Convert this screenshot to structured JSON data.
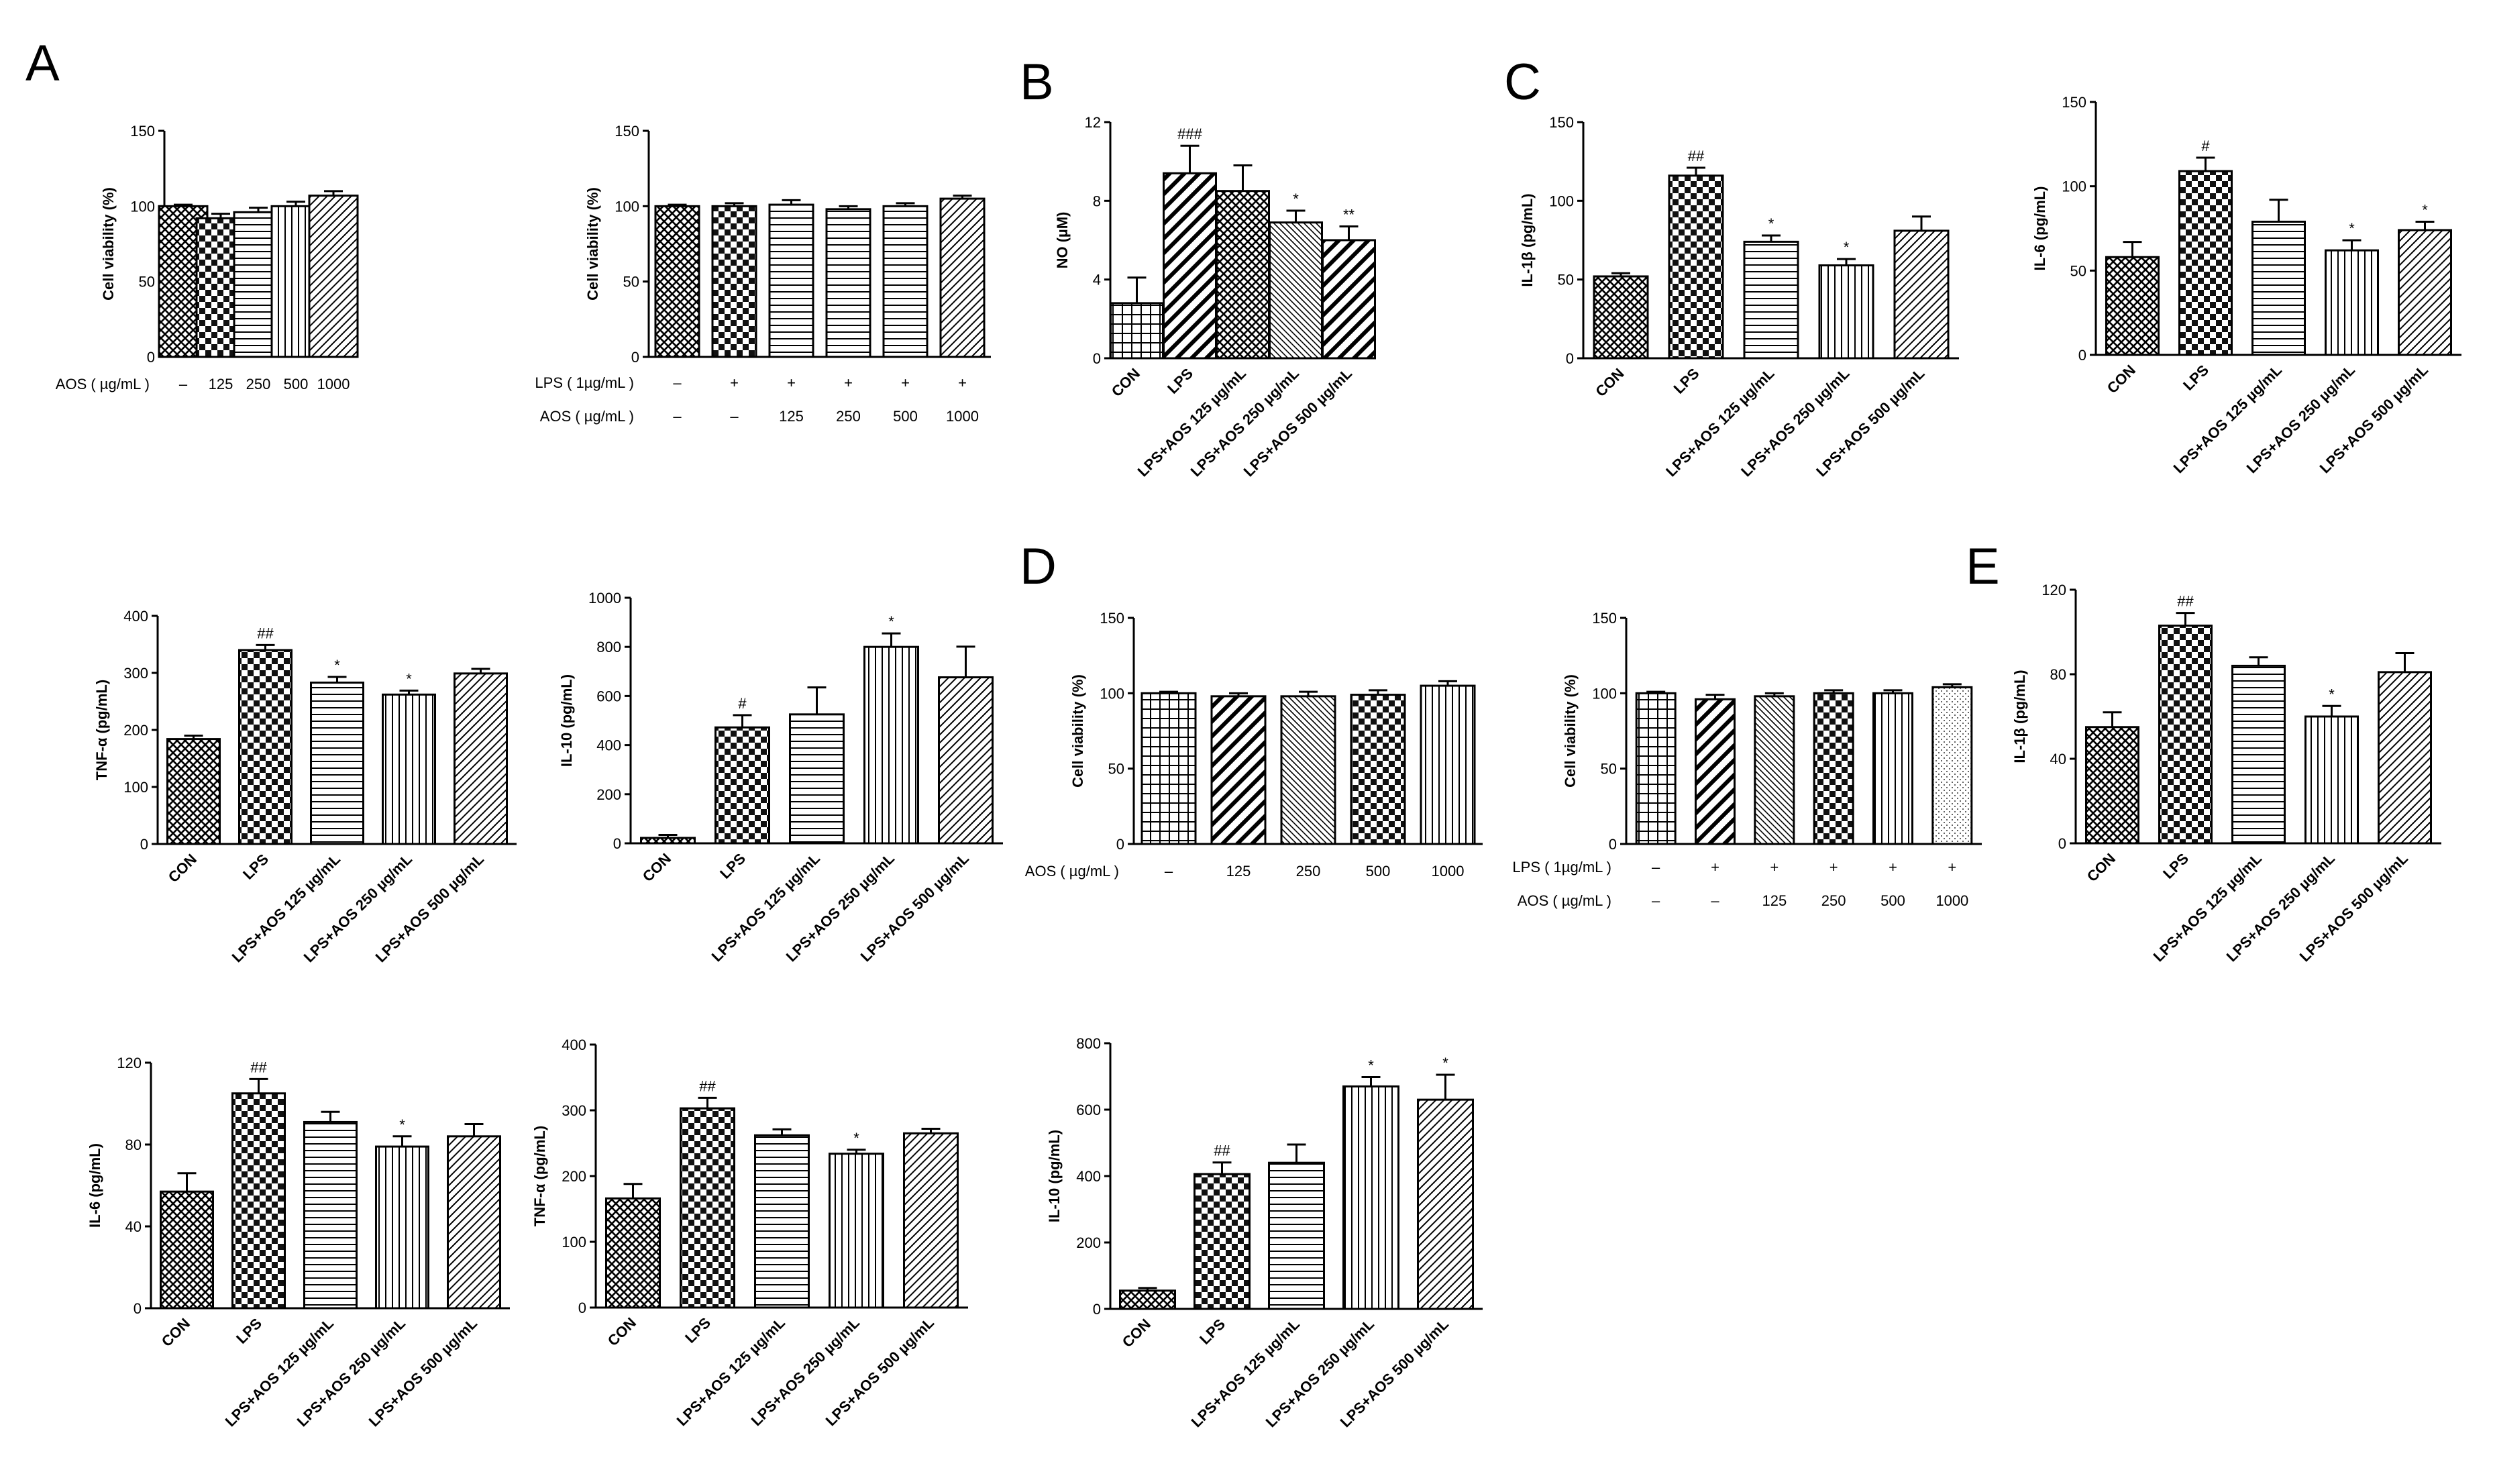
{
  "panel_labels": [
    "A",
    "B",
    "C",
    "D",
    "E"
  ],
  "chart_data": [
    {
      "id": "A1",
      "panel": "A",
      "type": "bar",
      "title": "",
      "ylabel": "Cell viability (%)",
      "ylim": [
        0,
        150
      ],
      "yticks": [
        0,
        50,
        100,
        150
      ],
      "categories": [
        "–",
        "125",
        "250",
        "500",
        "1000"
      ],
      "values": [
        100,
        92,
        96,
        100,
        107
      ],
      "errors": [
        1,
        3,
        3,
        3,
        3
      ],
      "sig": [
        "",
        "",
        "",
        "",
        ""
      ],
      "patterns": [
        "cross",
        "check",
        "hline",
        "vline",
        "diag"
      ],
      "rows": [
        {
          "label": "AOS ( µg/mL )",
          "values": [
            "–",
            "125",
            "250",
            "500",
            "1000"
          ]
        }
      ]
    },
    {
      "id": "A2",
      "panel": "A",
      "type": "bar",
      "title": "",
      "ylabel": "Cell viability (%)",
      "ylim": [
        0,
        150
      ],
      "yticks": [
        0,
        50,
        100,
        150
      ],
      "categories": [
        "–",
        "+",
        "+",
        "+",
        "+",
        "+"
      ],
      "values": [
        100,
        100,
        101,
        98,
        100,
        105
      ],
      "errors": [
        1,
        2,
        3,
        2,
        2,
        2
      ],
      "sig": [
        "",
        "",
        "",
        "",
        "",
        ""
      ],
      "patterns": [
        "cross",
        "check",
        "hline",
        "hline",
        "hline",
        "diag"
      ],
      "rows": [
        {
          "label": "LPS ( 1µg/mL )",
          "values": [
            "–",
            "+",
            "+",
            "+",
            "+",
            "+"
          ]
        },
        {
          "label": "AOS ( µg/mL )",
          "values": [
            "–",
            "–",
            "125",
            "250",
            "500",
            "1000"
          ]
        }
      ]
    },
    {
      "id": "B",
      "panel": "B",
      "type": "bar",
      "title": "",
      "ylabel": "NO (µM)",
      "ylim": [
        0,
        12
      ],
      "yticks": [
        0,
        4,
        8,
        12
      ],
      "categories": [
        "CON",
        "LPS",
        "LPS+AOS 125 µg/mL",
        "LPS+AOS 250 µg/mL",
        "LPS+AOS 500 µg/mL"
      ],
      "values": [
        2.8,
        9.4,
        8.5,
        6.9,
        6.0
      ],
      "errors": [
        1.3,
        1.4,
        1.3,
        0.6,
        0.7
      ],
      "sig": [
        "",
        "###",
        "",
        "*",
        "**"
      ],
      "patterns": [
        "grid",
        "bdiag",
        "cross",
        "fdiag",
        "bdiag"
      ],
      "rows": []
    },
    {
      "id": "C1",
      "panel": "C",
      "type": "bar",
      "title": "",
      "ylabel": "IL-1β (pg/mL)",
      "ylim": [
        0,
        150
      ],
      "yticks": [
        0,
        50,
        100,
        150
      ],
      "categories": [
        "CON",
        "LPS",
        "LPS+AOS 125 µg/mL",
        "LPS+AOS 250 µg/mL",
        "LPS+AOS 500 µg/mL"
      ],
      "values": [
        52,
        116,
        74,
        59,
        81
      ],
      "errors": [
        2,
        5,
        4,
        4,
        9
      ],
      "sig": [
        "",
        "##",
        "*",
        "*",
        ""
      ],
      "patterns": [
        "cross",
        "check",
        "hline",
        "vline",
        "diag"
      ],
      "rows": []
    },
    {
      "id": "C2",
      "panel": "C",
      "type": "bar",
      "title": "",
      "ylabel": "IL-6 (pg/mL)",
      "ylim": [
        0,
        150
      ],
      "yticks": [
        0,
        50,
        100,
        150
      ],
      "categories": [
        "CON",
        "LPS",
        "LPS+AOS 125 µg/mL",
        "LPS+AOS 250 µg/mL",
        "LPS+AOS 500 µg/mL"
      ],
      "values": [
        58,
        109,
        79,
        62,
        74
      ],
      "errors": [
        9,
        8,
        13,
        6,
        5
      ],
      "sig": [
        "",
        "#",
        "",
        "*",
        "*"
      ],
      "patterns": [
        "cross",
        "check",
        "hline",
        "vline",
        "diag"
      ],
      "rows": []
    },
    {
      "id": "C3",
      "panel": "C",
      "type": "bar",
      "title": "",
      "ylabel": "TNF-α (pg/mL)",
      "ylim": [
        0,
        400
      ],
      "yticks": [
        0,
        100,
        200,
        300,
        400
      ],
      "categories": [
        "CON",
        "LPS",
        "LPS+AOS 125 µg/mL",
        "LPS+AOS 250 µg/mL",
        "LPS+AOS 500 µg/mL"
      ],
      "values": [
        184,
        340,
        283,
        262,
        299
      ],
      "errors": [
        6,
        9,
        10,
        7,
        8
      ],
      "sig": [
        "",
        "##",
        "*",
        "*",
        ""
      ],
      "patterns": [
        "cross",
        "check",
        "hline",
        "vline",
        "diag"
      ],
      "rows": []
    },
    {
      "id": "C4",
      "panel": "C",
      "type": "bar",
      "title": "",
      "ylabel": "IL-10 (pg/mL)",
      "ylim": [
        0,
        1000
      ],
      "yticks": [
        0,
        200,
        400,
        600,
        800,
        1000
      ],
      "categories": [
        "CON",
        "LPS",
        "LPS+AOS 125 µg/mL",
        "LPS+AOS 250 µg/mL",
        "LPS+AOS 500 µg/mL"
      ],
      "values": [
        22,
        472,
        525,
        800,
        676
      ],
      "errors": [
        12,
        50,
        110,
        55,
        125
      ],
      "sig": [
        "",
        "#",
        "",
        "*",
        ""
      ],
      "patterns": [
        "cross",
        "check",
        "hline",
        "vline",
        "diag"
      ],
      "rows": []
    },
    {
      "id": "D1",
      "panel": "D",
      "type": "bar",
      "title": "",
      "ylabel": "Cell viability (%)",
      "ylim": [
        0,
        150
      ],
      "yticks": [
        0,
        50,
        100,
        150
      ],
      "categories": [
        "–",
        "125",
        "250",
        "500",
        "1000"
      ],
      "values": [
        100,
        98,
        98,
        99,
        105
      ],
      "errors": [
        1,
        2,
        3,
        3,
        3
      ],
      "sig": [
        "",
        "",
        "",
        "",
        ""
      ],
      "patterns": [
        "grid",
        "bdiag",
        "fdiag",
        "check",
        "vline"
      ],
      "rows": [
        {
          "label": "AOS ( µg/mL )",
          "values": [
            "–",
            "125",
            "250",
            "500",
            "1000"
          ]
        }
      ]
    },
    {
      "id": "D2",
      "panel": "D",
      "type": "bar",
      "title": "",
      "ylabel": "Cell viability (%)",
      "ylim": [
        0,
        150
      ],
      "yticks": [
        0,
        50,
        100,
        150
      ],
      "categories": [
        "–",
        "+",
        "+",
        "+",
        "+",
        "+"
      ],
      "values": [
        100,
        96,
        98,
        100,
        100,
        104
      ],
      "errors": [
        1,
        3,
        2,
        2,
        2,
        2
      ],
      "sig": [
        "",
        "",
        "",
        "",
        "",
        ""
      ],
      "patterns": [
        "grid",
        "bdiag",
        "fdiag",
        "check",
        "vline",
        "dots"
      ],
      "rows": [
        {
          "label": "LPS ( 1µg/mL )",
          "values": [
            "–",
            "+",
            "+",
            "+",
            "+",
            "+"
          ]
        },
        {
          "label": "AOS ( µg/mL )",
          "values": [
            "–",
            "–",
            "125",
            "250",
            "500",
            "1000"
          ]
        }
      ]
    },
    {
      "id": "E1",
      "panel": "E",
      "type": "bar",
      "title": "",
      "ylabel": "IL-1β (pg/mL)",
      "ylim": [
        0,
        120
      ],
      "yticks": [
        0,
        40,
        80,
        120
      ],
      "categories": [
        "CON",
        "LPS",
        "LPS+AOS 125 µg/mL",
        "LPS+AOS 250 µg/mL",
        "LPS+AOS 500 µg/mL"
      ],
      "values": [
        55,
        103,
        84,
        60,
        81
      ],
      "errors": [
        7,
        6,
        4,
        5,
        9
      ],
      "sig": [
        "",
        "##",
        "",
        "*",
        ""
      ],
      "patterns": [
        "cross",
        "check",
        "hline",
        "vline",
        "diag"
      ],
      "rows": []
    },
    {
      "id": "E2",
      "panel": "E",
      "type": "bar",
      "title": "",
      "ylabel": "IL-6 (pg/mL)",
      "ylim": [
        0,
        120
      ],
      "yticks": [
        0,
        40,
        80,
        120
      ],
      "categories": [
        "CON",
        "LPS",
        "LPS+AOS 125 µg/mL",
        "LPS+AOS 250 µg/mL",
        "LPS+AOS 500 µg/mL"
      ],
      "values": [
        57,
        105,
        91,
        79,
        84
      ],
      "errors": [
        9,
        7,
        5,
        5,
        6
      ],
      "sig": [
        "",
        "##",
        "",
        "*",
        ""
      ],
      "patterns": [
        "cross",
        "check",
        "hline",
        "vline",
        "diag"
      ],
      "rows": []
    },
    {
      "id": "E3",
      "panel": "E",
      "type": "bar",
      "title": "",
      "ylabel": "TNF-α (pg/mL)",
      "ylim": [
        0,
        400
      ],
      "yticks": [
        0,
        100,
        200,
        300,
        400
      ],
      "categories": [
        "CON",
        "LPS",
        "LPS+AOS 125 µg/mL",
        "LPS+AOS 250 µg/mL",
        "LPS+AOS 500 µg/mL"
      ],
      "values": [
        166,
        303,
        262,
        234,
        265
      ],
      "errors": [
        22,
        16,
        9,
        6,
        7
      ],
      "sig": [
        "",
        "##",
        "",
        "*",
        ""
      ],
      "patterns": [
        "cross",
        "check",
        "hline",
        "vline",
        "diag"
      ],
      "rows": []
    },
    {
      "id": "E4",
      "panel": "E",
      "type": "bar",
      "title": "",
      "ylabel": "IL-10 (pg/mL)",
      "ylim": [
        0,
        800
      ],
      "yticks": [
        0,
        200,
        400,
        600,
        800
      ],
      "categories": [
        "CON",
        "LPS",
        "LPS+AOS 125 µg/mL",
        "LPS+AOS 250 µg/mL",
        "LPS+AOS 500 µg/mL"
      ],
      "values": [
        55,
        406,
        440,
        670,
        630
      ],
      "errors": [
        8,
        35,
        55,
        28,
        75
      ],
      "sig": [
        "",
        "##",
        "",
        "*",
        "*"
      ],
      "patterns": [
        "cross",
        "check",
        "hline",
        "vline",
        "diag"
      ],
      "rows": []
    }
  ]
}
